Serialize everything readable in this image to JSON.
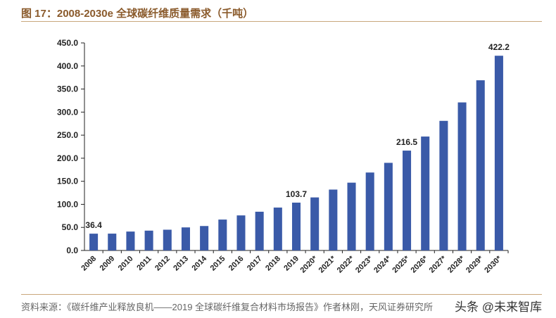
{
  "figure": {
    "title": "图 17：2008-2030e 全球碳纤维质量需求（千吨）",
    "source": "资料来源：《碳纤维产业释放良机——2019 全球碳纤维复合材料市场报告》作者林刚，天风证券研究所",
    "watermark": "头条 @未来智库"
  },
  "colors": {
    "bar": "#3a5aa8",
    "axis": "#222222",
    "accent": "#8a5a2b"
  },
  "chart_data": {
    "type": "bar",
    "categories": [
      "2008",
      "2009",
      "2010",
      "2011",
      "2012",
      "2013",
      "2014",
      "2015",
      "2016",
      "2017",
      "2018",
      "2019",
      "2020*",
      "2021*",
      "2022*",
      "2023*",
      "2024*",
      "2025*",
      "2026*",
      "2027*",
      "2028*",
      "2029*",
      "2030*"
    ],
    "values": [
      36.4,
      36.5,
      41,
      43,
      45,
      50,
      53,
      67,
      76,
      84,
      93,
      103.7,
      115,
      132,
      147,
      169,
      190,
      216.5,
      247,
      281,
      321,
      369,
      422.2
    ],
    "data_labels": [
      {
        "index": 0,
        "text": "36.4"
      },
      {
        "index": 11,
        "text": "103.7"
      },
      {
        "index": 17,
        "text": "216.5"
      },
      {
        "index": 22,
        "text": "422.2"
      }
    ],
    "yticks": [
      "0.0",
      "50.0",
      "100.0",
      "150.0",
      "200.0",
      "250.0",
      "300.0",
      "350.0",
      "400.0",
      "450.0"
    ],
    "ylim": [
      0,
      450
    ],
    "xlabel": "",
    "ylabel": "",
    "grid": false
  }
}
